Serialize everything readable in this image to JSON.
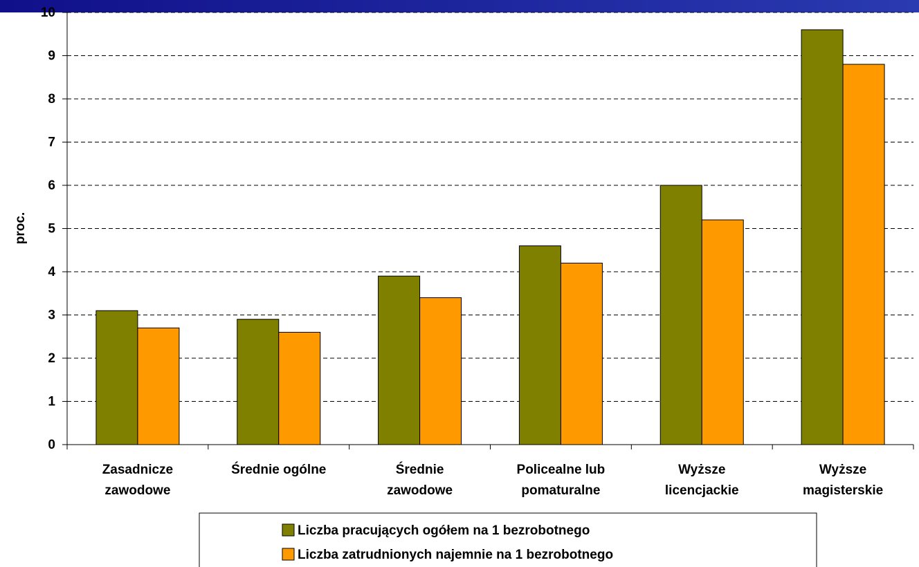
{
  "chart_data": {
    "type": "bar",
    "y_label": "proc.",
    "categories": [
      "Zasadnicze\nzawodowe",
      "Średnie ogólne",
      "Średnie\nzawodowe",
      "Policealne lub\npomaturalne",
      "Wyższe\nlicencjackie",
      "Wyższe\nmagisterskie"
    ],
    "series": [
      {
        "name": "Liczba pracujących ogółem na 1 bezrobotnego",
        "color": "#808000",
        "values": [
          3.1,
          2.9,
          3.9,
          4.6,
          6.0,
          9.6
        ]
      },
      {
        "name": "Liczba zatrudnionych najemnie na 1 bezrobotnego",
        "color": "#ff9900",
        "values": [
          2.7,
          2.6,
          3.4,
          4.2,
          5.2,
          8.8
        ]
      }
    ],
    "ylim": [
      0,
      10
    ],
    "yticks": [
      0,
      1,
      2,
      3,
      4,
      5,
      6,
      7,
      8,
      9,
      10
    ],
    "grid": true
  }
}
